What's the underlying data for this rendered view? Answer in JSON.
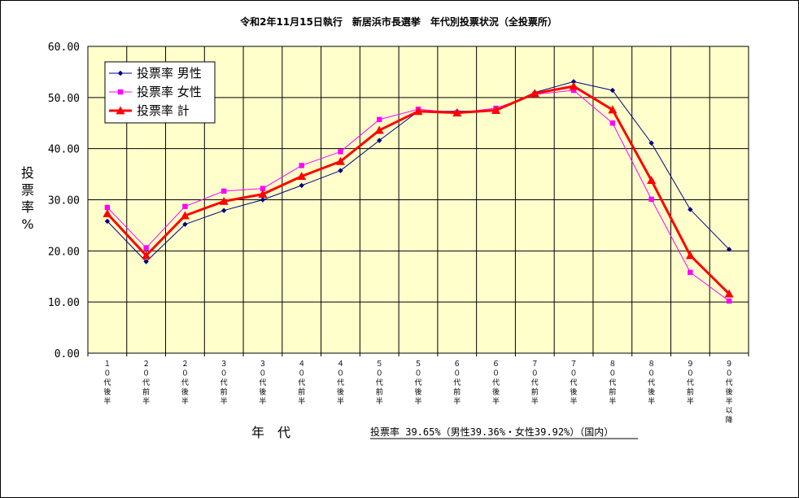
{
  "chart_data": {
    "type": "line",
    "title": "令和2年11月15日執行　新居浜市長選挙　年代別投票状況（全投票所）",
    "xlabel": "年　代",
    "ylabel": "投票率%",
    "ylim": [
      0,
      60
    ],
    "yticks": [
      "0.00",
      "10.00",
      "20.00",
      "30.00",
      "40.00",
      "50.00",
      "60.00"
    ],
    "grid": true,
    "legend_position": "top-left",
    "categories": [
      "10代後半",
      "20代前半",
      "20代後半",
      "30代前半",
      "30代後半",
      "40代前半",
      "40代後半",
      "50代前半",
      "50代後半",
      "60代前半",
      "60代後半",
      "70代前半",
      "70代後半",
      "80代前半",
      "80代後半",
      "90代前半",
      "90代後半以降"
    ],
    "category_labels": [
      "１０代後半",
      "２０代前半",
      "２０代後半",
      "３０代前半",
      "３０代後半",
      "４０代前半",
      "４０代後半",
      "５０代前半",
      "５０代後半",
      "６０代前半",
      "６０代後半",
      "７０代前半",
      "７０代後半",
      "８０代前半",
      "８０代後半",
      "９０代前半",
      "９０代後半以降"
    ],
    "series": [
      {
        "name": "投票率 男性",
        "color": "#000080",
        "marker": "diamond",
        "width": 1,
        "values": [
          25.8,
          17.9,
          25.2,
          27.9,
          30.0,
          32.8,
          35.7,
          41.6,
          47.3,
          47.3,
          47.4,
          51.0,
          53.1,
          51.4,
          41.1,
          28.1,
          20.3
        ]
      },
      {
        "name": "投票率 女性",
        "color": "#ff00ff",
        "marker": "square",
        "width": 1,
        "values": [
          28.5,
          20.6,
          28.7,
          31.7,
          32.2,
          36.7,
          39.4,
          45.7,
          47.7,
          47.0,
          47.9,
          50.6,
          51.4,
          45.0,
          30.1,
          15.8,
          10.2
        ]
      },
      {
        "name": "投票率 計",
        "color": "#ff0000",
        "marker": "triangle",
        "width": 3,
        "values": [
          27.3,
          19.1,
          26.9,
          29.7,
          31.1,
          34.6,
          37.5,
          43.6,
          47.3,
          47.0,
          47.5,
          50.8,
          52.2,
          47.6,
          33.8,
          19.1,
          11.6
        ]
      }
    ],
    "annotation": "投票率 39.65%（男性39.36%・女性39.92%）（国内）"
  },
  "colors": {
    "plot_bg": "#ffffcc",
    "grid": "#000000",
    "frame": "#000000"
  }
}
